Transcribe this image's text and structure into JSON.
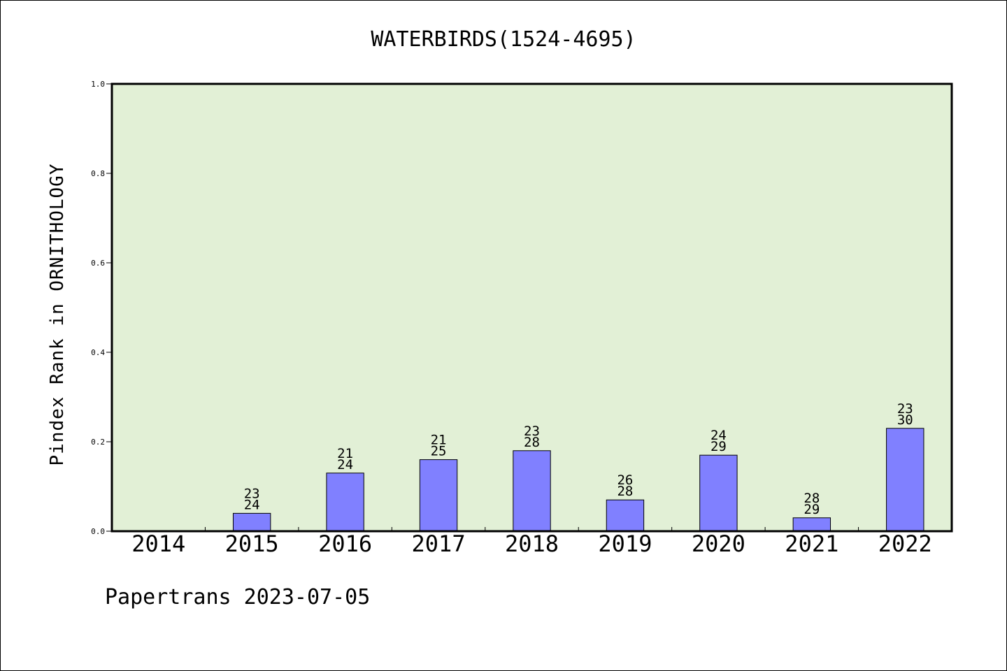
{
  "chart_data": {
    "type": "bar",
    "title": "WATERBIRDS(1524-4695)",
    "xlabel": "",
    "ylabel": "Pindex Rank in ORNITHOLOGY",
    "ylim": [
      0,
      1.0
    ],
    "yticks": [
      "0.0",
      "0.2",
      "0.4",
      "0.6",
      "0.8",
      "1.0"
    ],
    "ytick_values": [
      0.0,
      0.2,
      0.4,
      0.6,
      0.8,
      1.0
    ],
    "categories": [
      "2014",
      "2015",
      "2016",
      "2017",
      "2018",
      "2019",
      "2020",
      "2021",
      "2022"
    ],
    "values": [
      0,
      0.04,
      0.13,
      0.16,
      0.18,
      0.07,
      0.17,
      0.03,
      0.23
    ],
    "labels_top": [
      "",
      "23",
      "21",
      "21",
      "23",
      "26",
      "24",
      "28",
      "23"
    ],
    "labels_bottom": [
      "",
      "24",
      "24",
      "25",
      "28",
      "28",
      "29",
      "29",
      "30"
    ],
    "grid": false,
    "colors": {
      "plot_background": "#e2f0d6",
      "bar_fill": "#8080ff",
      "bar_stroke": "#000000"
    }
  },
  "footer": {
    "text": "Papertrans 2023-07-05"
  }
}
